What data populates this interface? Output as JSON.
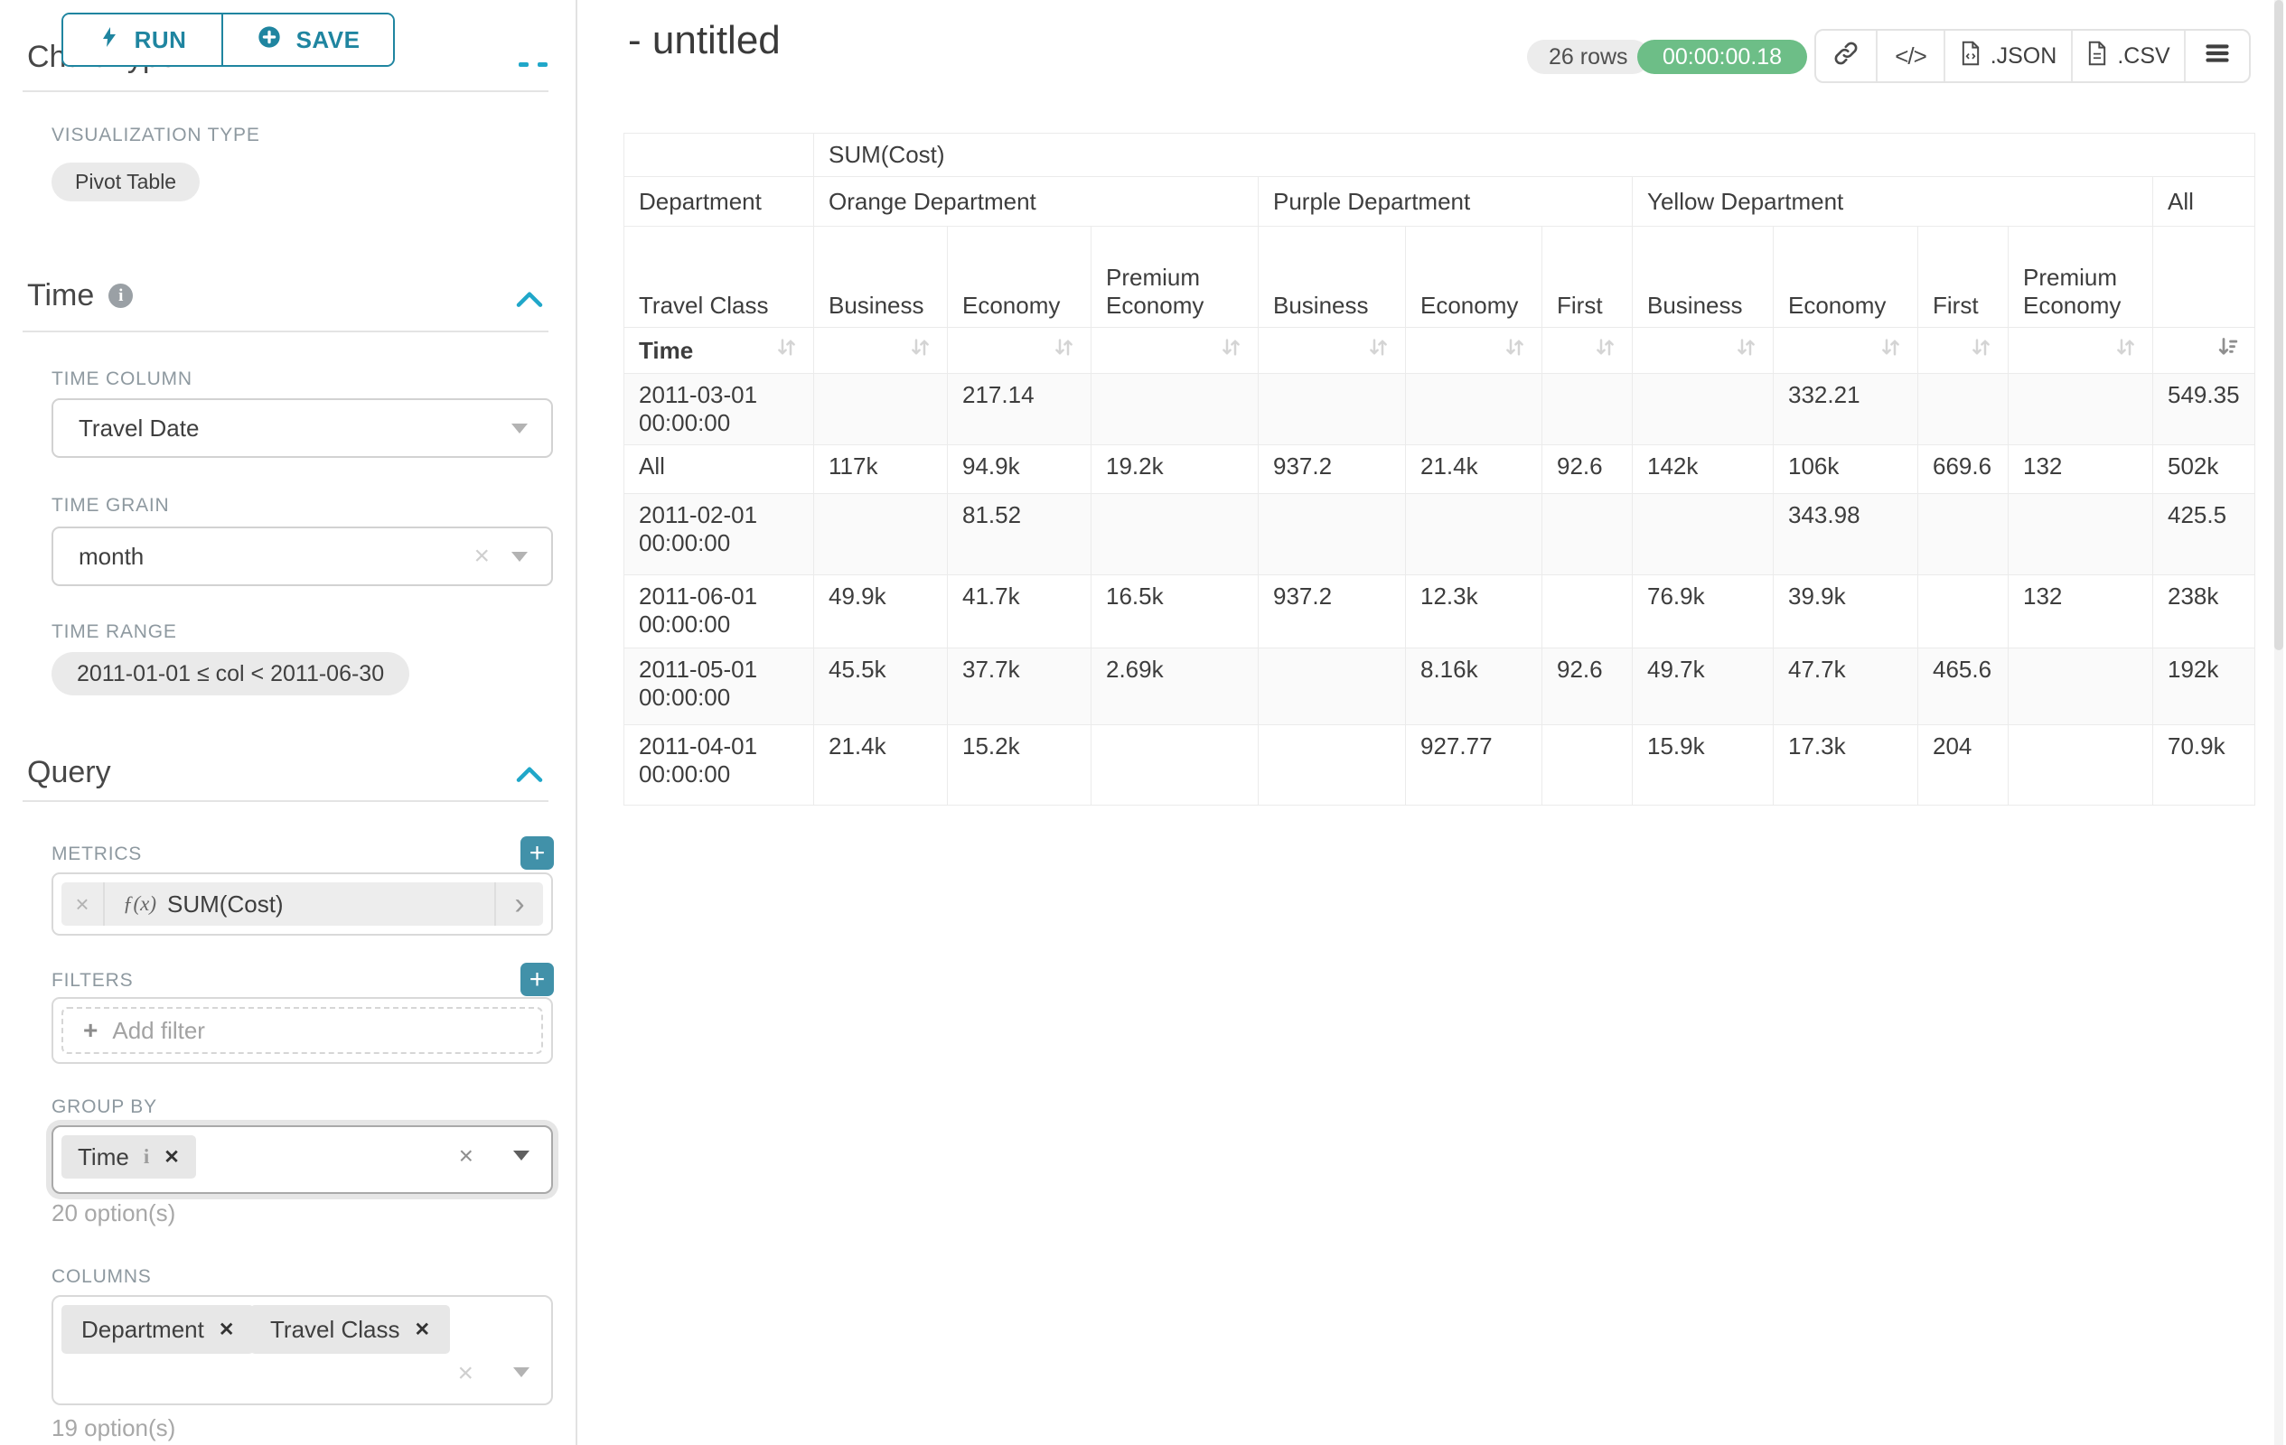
{
  "colors": {
    "accent_teal": "#1f85a0",
    "accent_blue": "#20a7c9",
    "success_green": "#6dbe87",
    "plus_teal": "#4191a9"
  },
  "sidebar": {
    "run_button": "RUN",
    "save_button": "SAVE",
    "chart_type_heading": "Chart Type",
    "visualization_type_label": "VISUALIZATION TYPE",
    "visualization_type_value": "Pivot Table",
    "time": {
      "heading": "Time",
      "time_column_label": "TIME COLUMN",
      "time_column_value": "Travel Date",
      "time_grain_label": "TIME GRAIN",
      "time_grain_value": "month",
      "time_range_label": "TIME RANGE",
      "time_range_value": "2011-01-01 ≤ col < 2011-06-30"
    },
    "query": {
      "heading": "Query",
      "metrics_label": "METRICS",
      "metric_fx": "ƒ(x)",
      "metric_chip": "SUM(Cost)",
      "filters_label": "FILTERS",
      "add_filter_placeholder": "Add filter",
      "group_by_label": "GROUP BY",
      "group_by_chips": [
        "Time"
      ],
      "group_by_options": "20 option(s)",
      "columns_label": "COLUMNS",
      "columns_chips": [
        "Department",
        "Travel Class"
      ],
      "columns_options": "19 option(s)"
    }
  },
  "header": {
    "title": "- untitled",
    "rows_badge": "26 rows",
    "timer_badge": "00:00:00.18",
    "export_json": ".JSON",
    "export_csv": ".CSV"
  },
  "pivot": {
    "metric_header": "SUM(Cost)",
    "dimension_label": "Department",
    "departments": [
      {
        "label": "Orange Department",
        "span": 3
      },
      {
        "label": "Purple Department",
        "span": 3
      },
      {
        "label": "Yellow Department",
        "span": 4
      },
      {
        "label": "All",
        "span": 1
      }
    ],
    "class_header_label": "Travel Class",
    "class_columns": [
      "Business",
      "Economy",
      "Premium Economy",
      "Business",
      "Economy",
      "First",
      "Business",
      "Economy",
      "First",
      "Premium Economy",
      ""
    ],
    "time_row_label": "Time",
    "sorted_column_index": 10,
    "rows": [
      {
        "label": "2011-03-01 00:00:00",
        "values": [
          "",
          "217.14",
          "",
          "",
          "",
          "",
          "",
          "332.21",
          "",
          "",
          "549.35"
        ]
      },
      {
        "label": "All",
        "values": [
          "117k",
          "94.9k",
          "19.2k",
          "937.2",
          "21.4k",
          "92.6",
          "142k",
          "106k",
          "669.6",
          "132",
          "502k"
        ]
      },
      {
        "label": "2011-02-01 00:00:00",
        "values": [
          "",
          "81.52",
          "",
          "",
          "",
          "",
          "",
          "343.98",
          "",
          "",
          "425.5"
        ]
      },
      {
        "label": "2011-06-01 00:00:00",
        "values": [
          "49.9k",
          "41.7k",
          "16.5k",
          "937.2",
          "12.3k",
          "",
          "76.9k",
          "39.9k",
          "",
          "132",
          "238k"
        ]
      },
      {
        "label": "2011-05-01 00:00:00",
        "values": [
          "45.5k",
          "37.7k",
          "2.69k",
          "",
          "8.16k",
          "92.6",
          "49.7k",
          "47.7k",
          "465.6",
          "",
          "192k"
        ]
      },
      {
        "label": "2011-04-01 00:00:00",
        "values": [
          "21.4k",
          "15.2k",
          "",
          "",
          "927.77",
          "",
          "15.9k",
          "17.3k",
          "204",
          "",
          "70.9k"
        ]
      }
    ]
  }
}
